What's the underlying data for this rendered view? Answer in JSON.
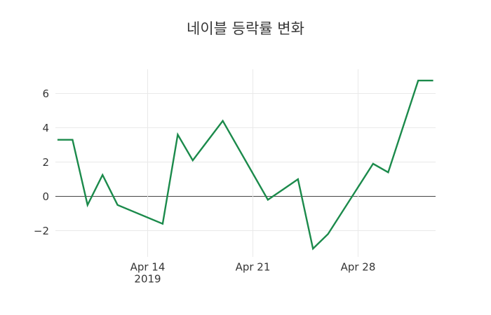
{
  "title": "네이블 등락률 변화",
  "colors": {
    "background": "#ffffff",
    "line": "#1b8a4b",
    "grid": "#e9e9e9",
    "zeroline": "#444444",
    "text": "#363636"
  },
  "chart_data": {
    "type": "line",
    "title": "네이블 등락률 변화",
    "xlabel": "",
    "ylabel": "",
    "x": [
      "2019-04-08",
      "2019-04-09",
      "2019-04-10",
      "2019-04-11",
      "2019-04-12",
      "2019-04-15",
      "2019-04-16",
      "2019-04-17",
      "2019-04-18",
      "2019-04-19",
      "2019-04-22",
      "2019-04-23",
      "2019-04-24",
      "2019-04-25",
      "2019-04-26",
      "2019-04-29",
      "2019-04-30",
      "2019-05-02",
      "2019-05-03"
    ],
    "y": [
      3.3,
      3.3,
      -0.5,
      1.25,
      -0.5,
      -1.6,
      3.6,
      2.1,
      3.25,
      4.4,
      -0.2,
      0.4,
      1.0,
      -3.05,
      -2.2,
      1.9,
      1.4,
      6.75,
      6.75
    ],
    "ylim": [
      -3.5,
      7.4
    ],
    "grid": "on",
    "legend": "none",
    "x_ticks": [
      {
        "date": "2019-04-14",
        "label": "Apr 14",
        "sublabel": "2019"
      },
      {
        "date": "2019-04-21",
        "label": "Apr 21",
        "sublabel": ""
      },
      {
        "date": "2019-04-28",
        "label": "Apr 28",
        "sublabel": ""
      }
    ],
    "y_ticks": [
      {
        "value": 6,
        "label": "6"
      },
      {
        "value": 4,
        "label": "4"
      },
      {
        "value": 2,
        "label": "2"
      },
      {
        "value": 0,
        "label": "0"
      },
      {
        "value": -2,
        "label": "−2"
      }
    ]
  }
}
